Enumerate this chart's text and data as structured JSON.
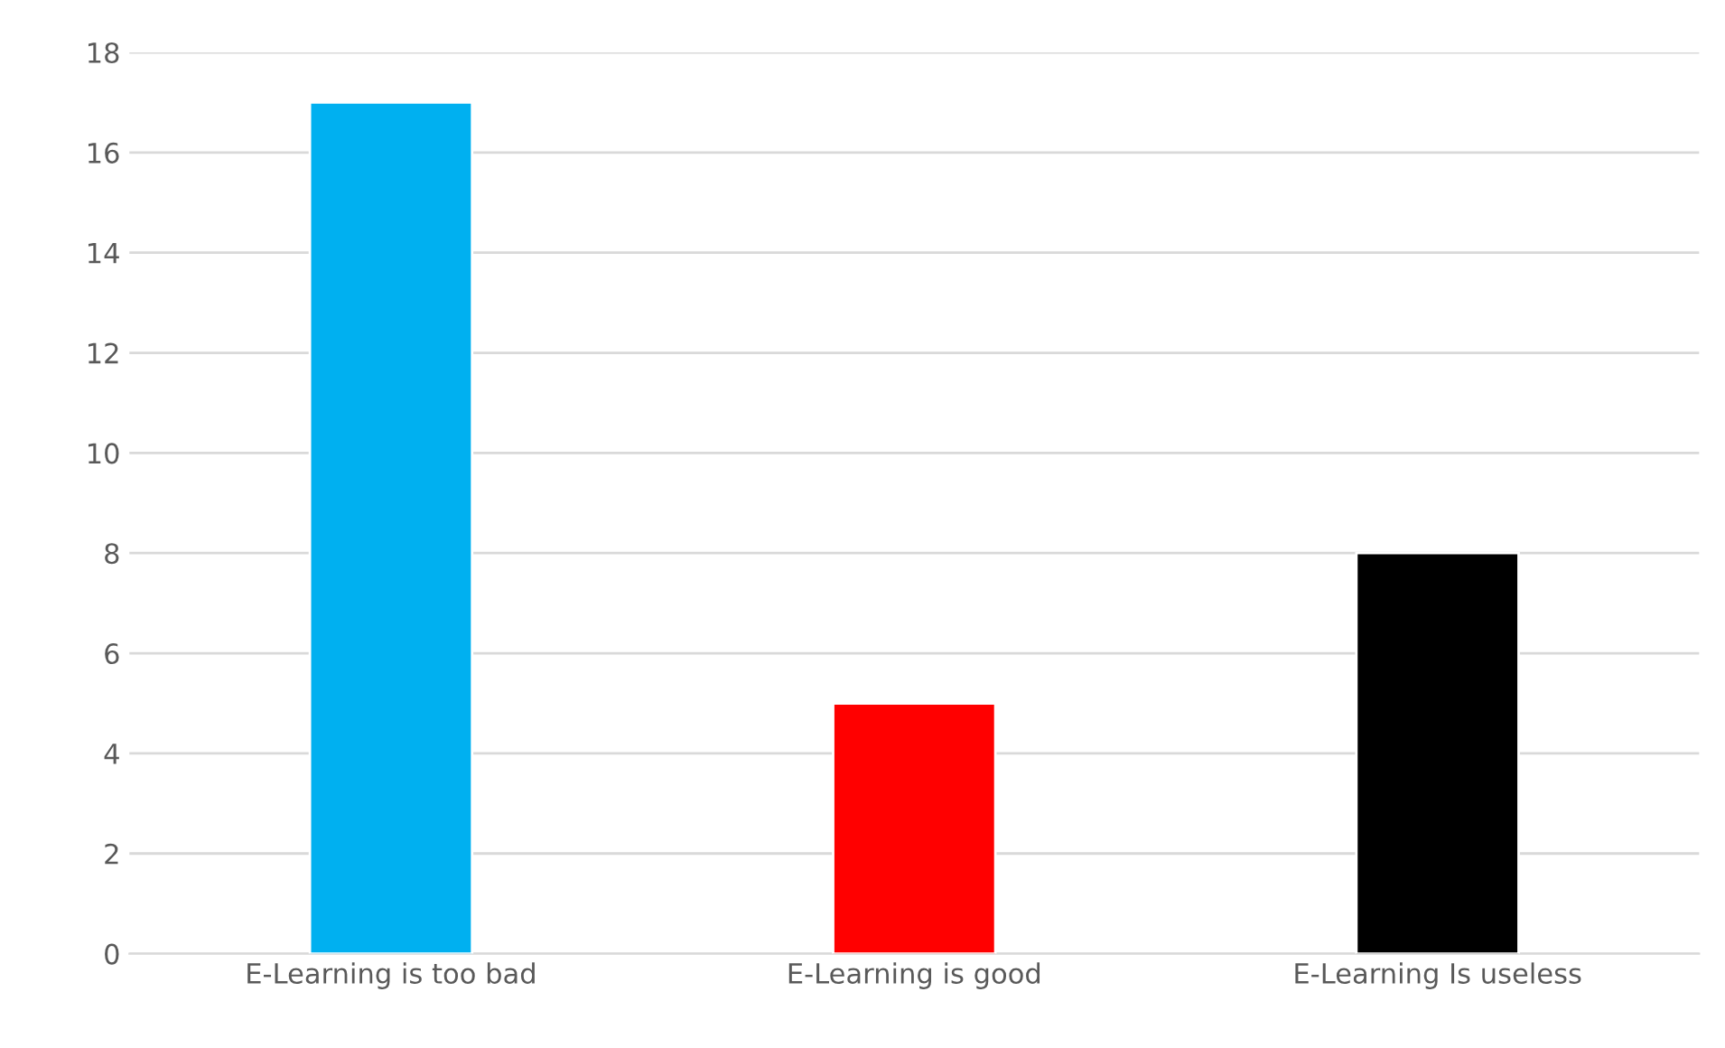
{
  "chart_data": {
    "type": "bar",
    "categories": [
      "E-Learning is too bad",
      "E-Learning is good",
      "E-Learning Is useless"
    ],
    "values": [
      17,
      5,
      8
    ],
    "colors": [
      "#00b0f0",
      "#ff0000",
      "#000000"
    ],
    "ylim": [
      0,
      18
    ],
    "yticks": [
      0,
      2,
      4,
      6,
      8,
      10,
      12,
      14,
      16,
      18
    ],
    "grid": "y"
  }
}
